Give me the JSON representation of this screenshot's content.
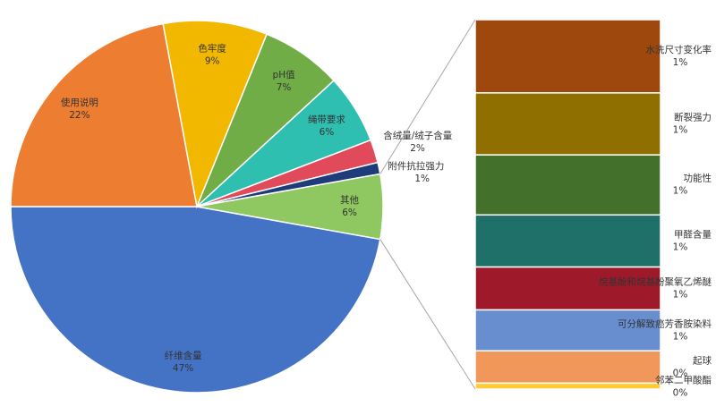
{
  "chart_data": [
    {
      "type": "pie",
      "categories": [
        "纤维含量",
        "使用说明",
        "色牢度",
        "pH值",
        "绳带要求",
        "含绒量/绒子含量",
        "附件抗拉强力",
        "其他"
      ],
      "values": [
        47,
        22,
        9,
        7,
        6,
        2,
        1,
        5.6
      ],
      "value_labels": [
        "47%",
        "22%",
        "9%",
        "7%",
        "6%",
        "2%",
        "1%",
        "6%"
      ],
      "colors": [
        "#4472c4",
        "#ed7d31",
        "#f2b800",
        "#70ad47",
        "#2fbfb0",
        "#e04a5a",
        "#1f3c7a",
        "#8fc760"
      ]
    },
    {
      "type": "stacked-column",
      "categories": [
        "水洗尺寸变化率",
        "断裂强力",
        "功能性",
        "甲醛含量",
        "烷基酚和烷基酚聚氧乙烯醚",
        "可分解致癌芳香胺染料",
        "起球",
        "邻苯二甲酸酯"
      ],
      "values": [
        1.11,
        0.94,
        0.91,
        0.79,
        0.65,
        0.62,
        0.49,
        0.09
      ],
      "value_labels": [
        "1%",
        "1%",
        "1%",
        "1%",
        "1%",
        "1%",
        "0%",
        "0%"
      ],
      "colors": [
        "#9e480e",
        "#8f6f00",
        "#43702b",
        "#1f7068",
        "#9e1a2a",
        "#698ed0",
        "#f1975a",
        "#ffcd33"
      ]
    }
  ]
}
